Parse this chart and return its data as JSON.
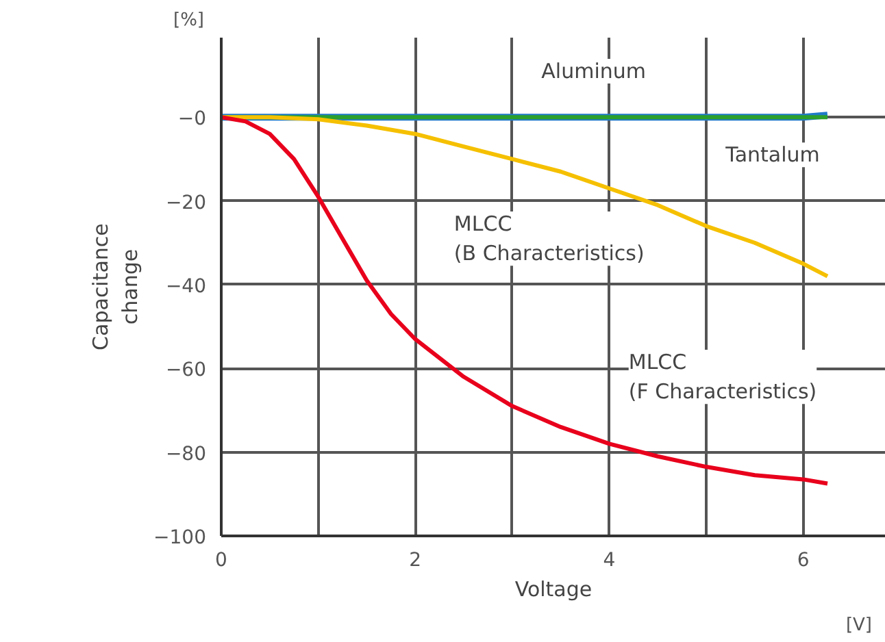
{
  "chart_data": {
    "type": "line",
    "xlabel": "Voltage",
    "ylabel": "Capacitance\nchange",
    "xlim": [
      0,
      6.85
    ],
    "ylim": [
      -100,
      19
    ],
    "xticks": [
      0,
      {
        "value": 1,
        "label": null
      },
      2,
      {
        "value": 3,
        "label": null
      },
      4,
      {
        "value": 5,
        "label": null
      },
      6
    ],
    "yticks": [
      {
        "value": -100,
        "label": "−100"
      },
      {
        "value": -80,
        "label": "−80"
      },
      {
        "value": -60,
        "label": "−60"
      },
      {
        "value": -40,
        "label": "−40"
      },
      {
        "value": -20,
        "label": "−20"
      },
      {
        "value": 0,
        "label": "−0"
      }
    ],
    "grid": true,
    "annotations": [
      "[%]",
      "[V]"
    ],
    "series": [
      {
        "name": "Aluminum",
        "color": "#1f7ac9",
        "x": [
          0,
          1,
          2,
          3,
          4,
          5,
          6,
          6.25
        ],
        "values": [
          0,
          0,
          0,
          0,
          0,
          0,
          0,
          0.5
        ]
      },
      {
        "name": "Tantalum",
        "color": "#2ca02c",
        "x": [
          0,
          1,
          2,
          3,
          4,
          5,
          6,
          6.25
        ],
        "values": [
          0,
          0,
          0,
          0,
          0,
          0,
          0,
          0
        ]
      },
      {
        "name": "MLCC\n(B Characteristics)",
        "color": "#f5c000",
        "x": [
          0,
          0.5,
          1,
          1.5,
          2,
          2.5,
          3,
          3.5,
          4,
          4.5,
          5,
          5.5,
          6,
          6.25
        ],
        "values": [
          0,
          0,
          -0.5,
          -2,
          -4,
          -7,
          -10,
          -13,
          -17,
          -21,
          -26,
          -30,
          -35,
          -38
        ]
      },
      {
        "name": "MLCC\n(F Characteristics)",
        "color": "#e8001c",
        "x": [
          0,
          0.25,
          0.5,
          0.75,
          1,
          1.25,
          1.5,
          1.75,
          2,
          2.5,
          3,
          3.5,
          4,
          4.5,
          5,
          5.5,
          6,
          6.25
        ],
        "values": [
          0,
          -1,
          -4,
          -10,
          -19,
          -29,
          -39,
          -47,
          -53,
          -62,
          -69,
          -74,
          -78,
          -81,
          -83.5,
          -85.5,
          -86.5,
          -87.5
        ]
      }
    ]
  }
}
